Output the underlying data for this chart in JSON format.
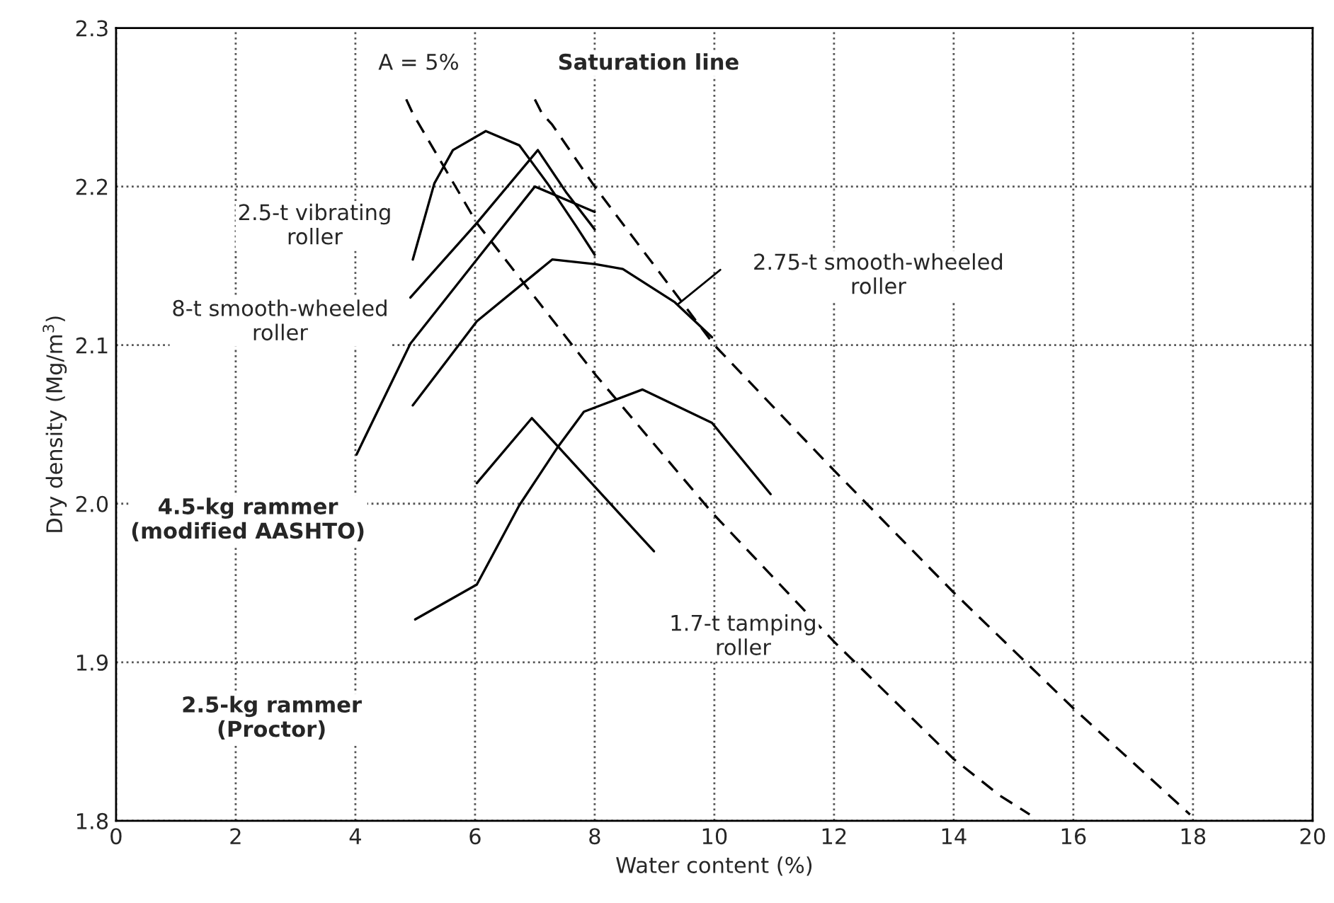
{
  "chart_data": {
    "type": "line",
    "xlabel": "Water content (%)",
    "ylabel": "Dry density (Mg/m$^{3}$)",
    "xlim": [
      0,
      20
    ],
    "ylim": [
      1.8,
      2.3
    ],
    "xticks": [
      0,
      2,
      4,
      6,
      8,
      10,
      12,
      14,
      16,
      18,
      20
    ],
    "yticks": [
      1.8,
      1.9,
      {
        "value": 2.0,
        "label": "2.0"
      },
      2.1,
      2.2,
      2.3
    ],
    "grid": true,
    "marker": "none",
    "series": [
      {
        "color": "#000000",
        "line_style": "dashed",
        "x": [
          7.0,
          7.12,
          7.29,
          8.0,
          10.0,
          12.0,
          14.0,
          16.0,
          17.95
        ],
        "values": [
          2.255,
          2.246,
          2.239,
          2.2,
          2.1,
          2.021,
          1.944,
          1.871,
          1.804
        ]
      },
      {
        "color": "#000000",
        "line_style": "dashed",
        "x": [
          4.85,
          4.96,
          6.03,
          8.02,
          9.97,
          12.0,
          14.0,
          14.77,
          15.27
        ],
        "values": [
          2.255,
          2.246,
          2.177,
          2.081,
          1.994,
          1.913,
          1.839,
          1.816,
          1.804
        ]
      },
      {
        "color": "#000000",
        "line_style": "solid",
        "x": [
          4.96,
          5.32,
          5.63,
          6.18,
          6.74,
          7.21,
          7.69,
          8.0
        ],
        "values": [
          2.154,
          2.202,
          2.223,
          2.235,
          2.226,
          2.202,
          2.175,
          2.157
        ]
      },
      {
        "color": "#000000",
        "line_style": "solid",
        "x": [
          4.92,
          6.03,
          7.05,
          7.53,
          8.0
        ],
        "values": [
          2.13,
          2.177,
          2.223,
          2.196,
          2.173
        ]
      },
      {
        "color": "#000000",
        "line_style": "solid",
        "x": [
          4.02,
          4.92,
          6.03,
          7.0,
          8.0
        ],
        "values": [
          2.031,
          2.101,
          2.154,
          2.2,
          2.184
        ]
      },
      {
        "color": "#000000",
        "line_style": "solid",
        "x": [
          4.96,
          6.03,
          7.29,
          8.02,
          8.47,
          9.34,
          9.96
        ],
        "values": [
          2.062,
          2.115,
          2.154,
          2.151,
          2.148,
          2.127,
          2.105
        ]
      },
      {
        "color": "#000000",
        "line_style": "solid",
        "x": [
          6.03,
          6.95,
          8.99
        ],
        "values": [
          2.013,
          2.054,
          1.97
        ]
      },
      {
        "color": "#000000",
        "line_style": "solid",
        "x": [
          5.0,
          6.03,
          6.74,
          7.37,
          7.82,
          8.8,
          9.96,
          10.94
        ],
        "values": [
          1.927,
          1.949,
          1.999,
          2.035,
          2.058,
          2.072,
          2.051,
          2.006
        ]
      }
    ],
    "annotations": [
      "Saturation line",
      "A = 5%",
      "2.5-t vibrating\nroller",
      "8-t smooth-wheeled\nroller",
      "2.75-t smooth-wheeled\nroller",
      "4.5-kg rammer\n(modified AASHTO)",
      "1.7-t tamping\nroller",
      "2.5-kg rammer\n(Proctor)"
    ]
  }
}
